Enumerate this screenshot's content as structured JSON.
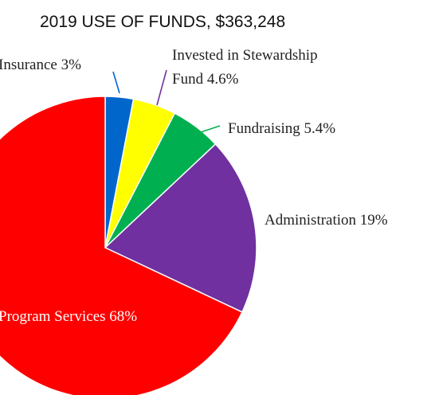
{
  "chart_data": {
    "type": "pie",
    "title": "2019 USE OF FUNDS, $363,248",
    "start": "12 o'clock",
    "direction": "clockwise",
    "legend": "none",
    "slices": [
      {
        "name": "Insurance",
        "value_label": "3%",
        "value": 3,
        "color": "#0066cc"
      },
      {
        "name": "Invested in Stewardship Fund",
        "value_label": "4.6%",
        "value": 4.6,
        "color": "#ffff00"
      },
      {
        "name": "Fundraising",
        "value_label": "5.4%",
        "value": 5.4,
        "color": "#00b050"
      },
      {
        "name": "Administration",
        "value_label": "19%",
        "value": 19,
        "color": "#7030a0"
      },
      {
        "name": "Program Services",
        "value_label": "68%",
        "value": 68,
        "color": "#ff0000"
      }
    ]
  }
}
